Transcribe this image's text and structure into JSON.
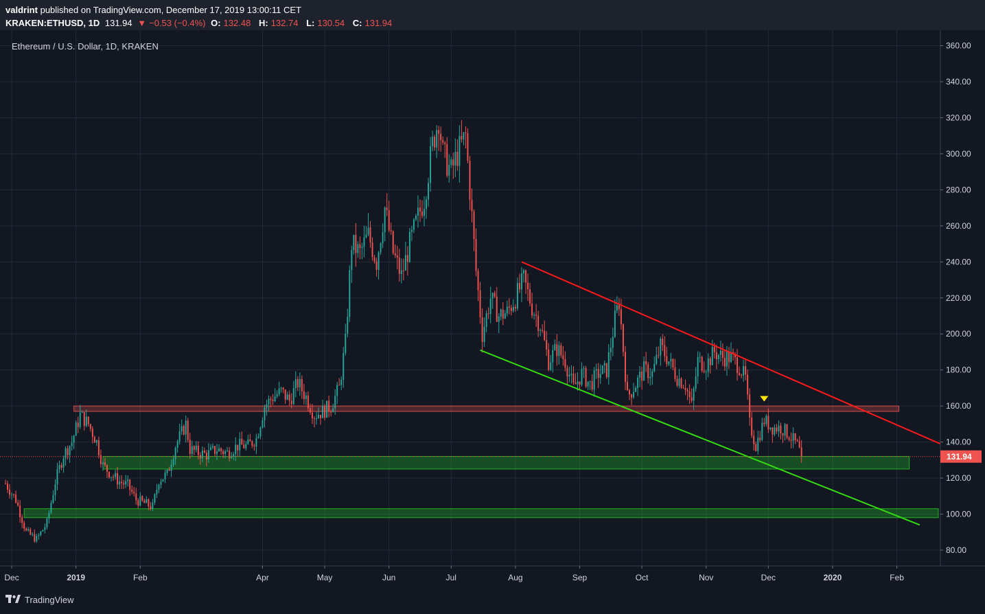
{
  "header": {
    "author": "valdrint",
    "published_text": "published on TradingView.com, December 17, 2019 13:00:11 CET",
    "symbol": "KRAKEN:ETHUSD, 1D",
    "last": "131.94",
    "change": "−0.53 (−0.4%)",
    "o_label": "O:",
    "o_val": "132.48",
    "h_label": "H:",
    "h_val": "132.74",
    "l_label": "L:",
    "l_val": "130.54",
    "c_label": "C:",
    "c_val": "131.94"
  },
  "legend_title": "Ethereum / U.S. Dollar, 1D, KRAKEN",
  "footer": {
    "brand": "TradingView"
  },
  "colors": {
    "bg": "#131722",
    "up": "#26a69a",
    "down": "#ef5350",
    "resistance_line": "#ff1a1a",
    "support_line": "#33dd11",
    "red_zone": "#ef5350",
    "green_zone": "#26c426",
    "marker": "#ffe600",
    "grid": "#242a38"
  },
  "chart_data": {
    "type": "candlestick",
    "title": "Ethereum / U.S. Dollar, 1D, KRAKEN",
    "x_ticks": [
      "Dec",
      "2019",
      "Feb",
      "Apr",
      "May",
      "Jun",
      "Jul",
      "Aug",
      "Sep",
      "Oct",
      "Nov",
      "Dec",
      "2020",
      "Feb"
    ],
    "x_tick_dates": [
      "2018-12-01",
      "2019-01-01",
      "2019-02-01",
      "2019-04-01",
      "2019-05-01",
      "2019-06-01",
      "2019-07-01",
      "2019-08-01",
      "2019-09-01",
      "2019-10-01",
      "2019-11-01",
      "2019-12-01",
      "2020-01-01",
      "2020-02-01"
    ],
    "y_ticks": [
      "360.00",
      "340.00",
      "320.00",
      "300.00",
      "280.00",
      "260.00",
      "240.00",
      "220.00",
      "200.00",
      "180.00",
      "160.00",
      "140.00",
      "120.00",
      "100.00",
      "80.00"
    ],
    "ylim": [
      72,
      364
    ],
    "xlim": [
      "2018-11-28",
      "2020-02-22"
    ],
    "last_price": 131.94,
    "last_label": "131.94",
    "closes": [
      [
        "2018-11-28",
        117
      ],
      [
        "2018-12-03",
        108
      ],
      [
        "2018-12-08",
        90
      ],
      [
        "2018-12-13",
        86
      ],
      [
        "2018-12-18",
        95
      ],
      [
        "2018-12-22",
        118
      ],
      [
        "2018-12-26",
        133
      ],
      [
        "2018-12-30",
        140
      ],
      [
        "2019-01-03",
        155
      ],
      [
        "2019-01-07",
        150
      ],
      [
        "2019-01-11",
        140
      ],
      [
        "2019-01-14",
        127
      ],
      [
        "2019-01-18",
        122
      ],
      [
        "2019-01-22",
        118
      ],
      [
        "2019-01-26",
        116
      ],
      [
        "2019-01-30",
        108
      ],
      [
        "2019-02-03",
        106
      ],
      [
        "2019-02-07",
        104
      ],
      [
        "2019-02-10",
        119
      ],
      [
        "2019-02-14",
        122
      ],
      [
        "2019-02-18",
        138
      ],
      [
        "2019-02-23",
        150
      ],
      [
        "2019-02-25",
        136
      ],
      [
        "2019-03-01",
        134
      ],
      [
        "2019-03-05",
        133
      ],
      [
        "2019-03-10",
        136
      ],
      [
        "2019-03-15",
        134
      ],
      [
        "2019-03-20",
        138
      ],
      [
        "2019-03-25",
        138
      ],
      [
        "2019-03-29",
        142
      ],
      [
        "2019-04-02",
        160
      ],
      [
        "2019-04-06",
        165
      ],
      [
        "2019-04-10",
        168
      ],
      [
        "2019-04-14",
        163
      ],
      [
        "2019-04-18",
        173
      ],
      [
        "2019-04-22",
        165
      ],
      [
        "2019-04-26",
        155
      ],
      [
        "2019-04-30",
        157
      ],
      [
        "2019-05-04",
        160
      ],
      [
        "2019-05-08",
        170
      ],
      [
        "2019-05-11",
        195
      ],
      [
        "2019-05-14",
        250
      ],
      [
        "2019-05-18",
        245
      ],
      [
        "2019-05-22",
        255
      ],
      [
        "2019-05-26",
        240
      ],
      [
        "2019-05-30",
        270
      ],
      [
        "2019-06-03",
        245
      ],
      [
        "2019-06-07",
        232
      ],
      [
        "2019-06-11",
        250
      ],
      [
        "2019-06-15",
        265
      ],
      [
        "2019-06-18",
        275
      ],
      [
        "2019-06-22",
        305
      ],
      [
        "2019-06-25",
        320
      ],
      [
        "2019-06-27",
        300
      ],
      [
        "2019-07-01",
        290
      ],
      [
        "2019-07-04",
        300
      ],
      [
        "2019-07-08",
        310
      ],
      [
        "2019-07-10",
        280
      ],
      [
        "2019-07-13",
        235
      ],
      [
        "2019-07-16",
        200
      ],
      [
        "2019-07-20",
        220
      ],
      [
        "2019-07-24",
        210
      ],
      [
        "2019-07-28",
        212
      ],
      [
        "2019-08-01",
        220
      ],
      [
        "2019-08-05",
        230
      ],
      [
        "2019-08-09",
        215
      ],
      [
        "2019-08-13",
        205
      ],
      [
        "2019-08-17",
        185
      ],
      [
        "2019-08-21",
        192
      ],
      [
        "2019-08-25",
        185
      ],
      [
        "2019-08-29",
        170
      ],
      [
        "2019-09-02",
        178
      ],
      [
        "2019-09-06",
        172
      ],
      [
        "2019-09-10",
        178
      ],
      [
        "2019-09-14",
        180
      ],
      [
        "2019-09-18",
        208
      ],
      [
        "2019-09-20",
        218
      ],
      [
        "2019-09-24",
        165
      ],
      [
        "2019-09-28",
        172
      ],
      [
        "2019-10-02",
        180
      ],
      [
        "2019-10-06",
        178
      ],
      [
        "2019-10-10",
        193
      ],
      [
        "2019-10-14",
        185
      ],
      [
        "2019-10-18",
        176
      ],
      [
        "2019-10-22",
        172
      ],
      [
        "2019-10-25",
        160
      ],
      [
        "2019-10-28",
        185
      ],
      [
        "2019-11-01",
        183
      ],
      [
        "2019-11-05",
        190
      ],
      [
        "2019-11-09",
        187
      ],
      [
        "2019-11-13",
        187
      ],
      [
        "2019-11-17",
        182
      ],
      [
        "2019-11-20",
        175
      ],
      [
        "2019-11-22",
        150
      ],
      [
        "2019-11-25",
        138
      ],
      [
        "2019-11-29",
        152
      ],
      [
        "2019-12-03",
        148
      ],
      [
        "2019-12-07",
        148
      ],
      [
        "2019-12-11",
        144
      ],
      [
        "2019-12-15",
        138
      ],
      [
        "2019-12-17",
        131.94
      ]
    ],
    "trendlines": [
      {
        "name": "resistance",
        "from": [
          "2019-08-04",
          240
        ],
        "to": [
          "2020-02-22",
          139
        ]
      },
      {
        "name": "support",
        "from": [
          "2019-07-15",
          191
        ],
        "to": [
          "2020-02-12",
          94
        ]
      }
    ],
    "zones": [
      {
        "name": "red-zone",
        "from": "2018-12-31",
        "to": "2020-02-02",
        "low": 157,
        "high": 160
      },
      {
        "name": "green-zone-upper",
        "from": "2019-01-14",
        "to": "2020-02-07",
        "low": 125,
        "high": 132
      },
      {
        "name": "green-zone-lower",
        "from": "2018-12-07",
        "to": "2020-02-21",
        "low": 98,
        "high": 103
      }
    ],
    "marker": {
      "date": "2019-11-29",
      "price": 164,
      "shape": "down-triangle"
    }
  }
}
